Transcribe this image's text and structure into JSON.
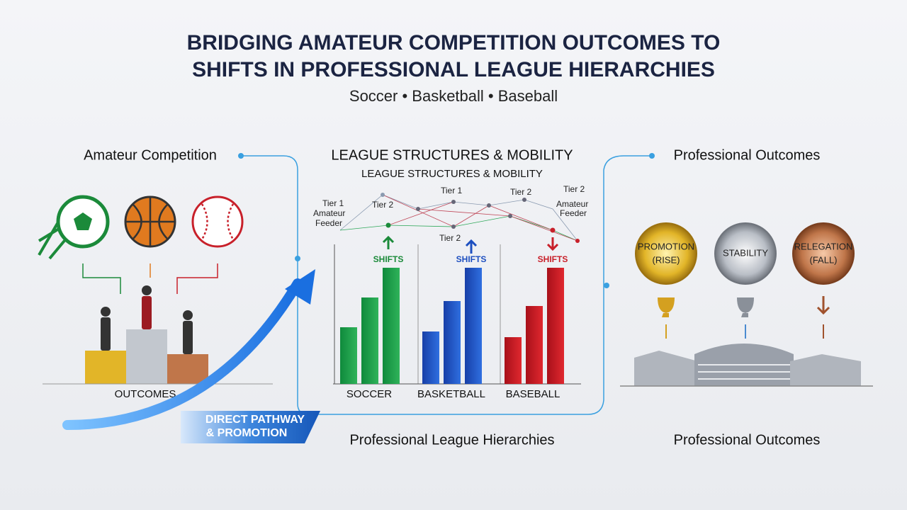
{
  "header": {
    "title_lines": [
      "BRIDGING AMATEUR COMPETITION OUTCOMES TO",
      "SHIFTS IN PROFESSIONAL LEAGUE HIERARCHIES"
    ],
    "subtitle": "Soccer • Basketball • Baseball"
  },
  "left": {
    "heading": "Amateur Competition",
    "label": "OUTCOMES"
  },
  "pathway": {
    "lines": [
      "DIRECT PATHWAY",
      "& PROMOTION"
    ]
  },
  "center": {
    "heading": "LEAGUE STRUCTURES & MOBILITY",
    "subheading": "LEAGUE STRUCTURES & MOBILITY",
    "network_labels": [
      "Tier 1",
      "Amateur",
      "Feeder",
      "Tier 2",
      "Tier 1",
      "Tier 2",
      "Tier 2",
      "Tier 2",
      "Amateur",
      "Feeder"
    ],
    "charts": [
      {
        "shift": "SHIFTS",
        "sport": "SOCCER"
      },
      {
        "shift": "SHIFTS",
        "sport": "BASKETBALL"
      },
      {
        "shift": "SHIFTS",
        "sport": "BASEBALL"
      }
    ],
    "footer": "Professional League Hierarchies"
  },
  "right": {
    "heading": "Professional Outcomes",
    "medals": [
      {
        "lines": [
          "PROMOTION",
          "(RISE)"
        ]
      },
      {
        "lines": [
          "STABILITY"
        ]
      },
      {
        "lines": [
          "RELEGATION",
          "(FALL)"
        ]
      }
    ],
    "footer": "Professional Outcomes"
  }
}
